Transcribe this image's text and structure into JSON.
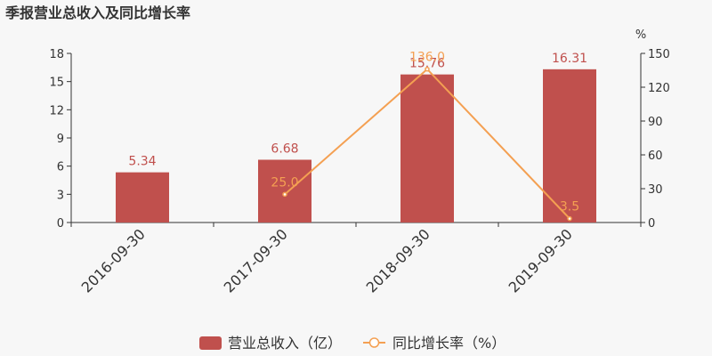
{
  "colors": {
    "bar": "#c0504d",
    "line": "#f4a052",
    "axis": "#333333"
  },
  "chart_data": {
    "type": "bar",
    "title": "季报营业总收入及同比增长率",
    "categories": [
      "2016-09-30",
      "2017-09-30",
      "2018-09-30",
      "2019-09-30"
    ],
    "y_left": {
      "ylim": [
        0,
        18
      ],
      "ticks": [
        "0",
        "3",
        "6",
        "9",
        "12",
        "15",
        "18"
      ]
    },
    "y_right": {
      "unit": "%",
      "ylim": [
        0,
        150
      ],
      "ticks": [
        "0",
        "30",
        "60",
        "90",
        "120",
        "150"
      ]
    },
    "series": [
      {
        "name": "营业总收入（亿）",
        "type": "bar",
        "axis": "left",
        "values": [
          5.34,
          6.68,
          15.76,
          16.31
        ],
        "labels": [
          "5.34",
          "6.68",
          "15.76",
          "16.31"
        ]
      },
      {
        "name": "同比增长率（%）",
        "type": "line",
        "axis": "right",
        "values": [
          null,
          25.0,
          136.0,
          3.5
        ],
        "labels": [
          "",
          "25.0",
          "136.0",
          "3.5"
        ]
      }
    ],
    "legend_position": "bottom",
    "grid": false
  }
}
